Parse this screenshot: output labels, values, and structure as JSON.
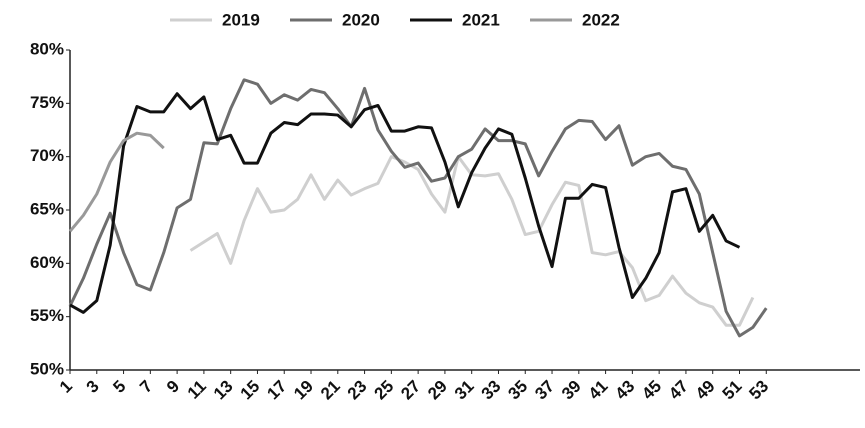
{
  "chart_data": {
    "type": "line",
    "x": [
      1,
      2,
      3,
      4,
      5,
      6,
      7,
      8,
      9,
      10,
      11,
      12,
      13,
      14,
      15,
      16,
      17,
      18,
      19,
      20,
      21,
      22,
      23,
      24,
      25,
      26,
      27,
      28,
      29,
      30,
      31,
      32,
      33,
      34,
      35,
      36,
      37,
      38,
      39,
      40,
      41,
      42,
      43,
      44,
      45,
      46,
      47,
      48,
      49,
      50,
      51,
      52,
      53
    ],
    "xlim": [
      1,
      60
    ],
    "xticks": [
      1,
      3,
      5,
      7,
      9,
      11,
      13,
      15,
      17,
      19,
      21,
      23,
      25,
      27,
      29,
      31,
      33,
      35,
      37,
      39,
      41,
      43,
      45,
      47,
      49,
      51,
      53
    ],
    "ylim": [
      50,
      80
    ],
    "yticks": [
      {
        "value": 50,
        "label": "50%"
      },
      {
        "value": 55,
        "label": "55%"
      },
      {
        "value": 60,
        "label": "60%"
      },
      {
        "value": 65,
        "label": "65%"
      },
      {
        "value": 70,
        "label": "70%"
      },
      {
        "value": 75,
        "label": "75%"
      },
      {
        "value": 80,
        "label": "80%"
      }
    ],
    "series": [
      {
        "name": "2019",
        "color": "#cfcfcf",
        "values": [
          null,
          null,
          null,
          null,
          null,
          null,
          null,
          null,
          null,
          61.2,
          62,
          62.8,
          60,
          64,
          67,
          64.8,
          65,
          66,
          68.3,
          66,
          67.8,
          66.4,
          67,
          67.5,
          70,
          69.5,
          68.8,
          66.5,
          64.8,
          70,
          68.3,
          68.2,
          68.4,
          66,
          62.7,
          63,
          65.5,
          67.6,
          67.3,
          61,
          60.8,
          61.1,
          59.6,
          56.5,
          57,
          58.8,
          57.2,
          56.3,
          55.9,
          54.2,
          54.2,
          56.8,
          null
        ]
      },
      {
        "name": "2020",
        "color": "#6e6e6e",
        "values": [
          56,
          58.6,
          61.8,
          64.7,
          61,
          58,
          57.5,
          61,
          65.2,
          66,
          71.3,
          71.2,
          74.5,
          77.2,
          76.8,
          75,
          75.8,
          75.3,
          76.3,
          76,
          74.5,
          72.8,
          76.4,
          72.5,
          70.5,
          69,
          69.4,
          67.7,
          68,
          70,
          70.7,
          72.6,
          71.5,
          71.5,
          71.2,
          68.2,
          70.5,
          72.6,
          73.4,
          73.3,
          71.6,
          72.9,
          69.2,
          70,
          70.3,
          69.1,
          68.8,
          66.5,
          61,
          55.5,
          53.2,
          54,
          55.8
        ]
      },
      {
        "name": "2021",
        "color": "#111111",
        "values": [
          56.1,
          55.4,
          56.5,
          61.7,
          71,
          74.7,
          74.2,
          74.2,
          75.9,
          74.5,
          75.6,
          71.6,
          72,
          69.4,
          69.4,
          72.2,
          73.2,
          73,
          74,
          74,
          73.9,
          72.8,
          74.4,
          74.8,
          72.4,
          72.4,
          72.8,
          72.7,
          69.5,
          65.3,
          68.5,
          70.8,
          72.6,
          72.1,
          68,
          63.5,
          59.7,
          66.1,
          66.1,
          67.4,
          67.1,
          61.5,
          56.8,
          58.6,
          61,
          66.7,
          67,
          63,
          64.5,
          62.1,
          61.5,
          null,
          null
        ]
      },
      {
        "name": "2022",
        "color": "#999999",
        "values": [
          63,
          64.5,
          66.5,
          69.5,
          71.5,
          72.2,
          72,
          70.8,
          null,
          null,
          null,
          null,
          null,
          null,
          null,
          null,
          null,
          null,
          null,
          null,
          null,
          null,
          null,
          null,
          null,
          null,
          null,
          null,
          null,
          null,
          null,
          null,
          null,
          null,
          null,
          null,
          null,
          null,
          null,
          null,
          null,
          null,
          null,
          null,
          null,
          null,
          null,
          null,
          null,
          null,
          null,
          null,
          null
        ]
      }
    ]
  }
}
